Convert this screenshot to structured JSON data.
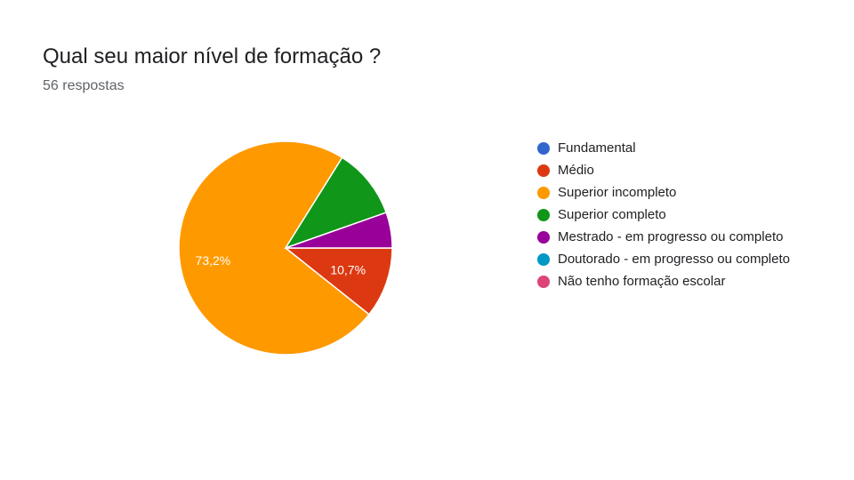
{
  "title": "Qual seu maior nível de formação ?",
  "subtitle": "56 respostas",
  "chart_data": {
    "type": "pie",
    "title": "Qual seu maior nível de formação ?",
    "subtitle": "56 respostas",
    "categories": [
      "Fundamental",
      "Médio",
      "Superior incompleto",
      "Superior completo",
      "Mestrado - em progresso ou completo",
      "Doutorado - em progresso ou completo",
      "Não tenho formação escolar"
    ],
    "values": [
      0,
      10.7,
      73.2,
      10.7,
      5.4,
      0,
      0
    ],
    "counts": [
      0,
      6,
      41,
      6,
      3,
      0,
      0
    ],
    "labels": [
      "",
      "10,7%",
      "73,2%",
      "",
      "",
      "",
      ""
    ],
    "colors": [
      "#3366cc",
      "#dc3912",
      "#ff9900",
      "#109618",
      "#990099",
      "#0099c6",
      "#dd4477"
    ],
    "legend_position": "right"
  }
}
